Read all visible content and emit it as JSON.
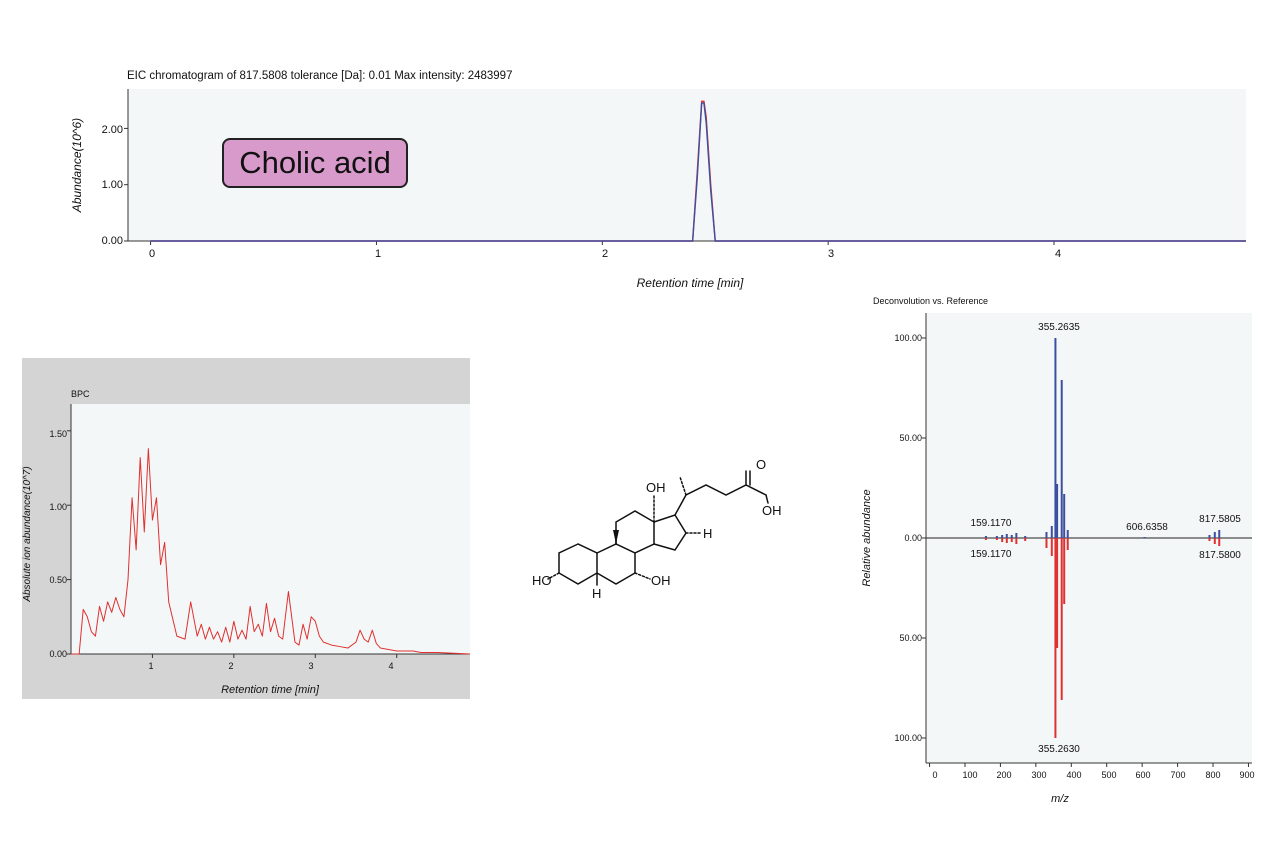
{
  "eic": {
    "title": "EIC chromatogram of 817.5808 tolerance [Da]: 0.01 Max intensity: 2483997",
    "ylabel": "Abundance(10^6)",
    "xlabel": "Retention time [min]",
    "yticks": [
      "2.00",
      "1.00",
      "0.00"
    ],
    "xticks": [
      "0",
      "1",
      "2",
      "3",
      "4"
    ]
  },
  "compound": {
    "name": "Cholic acid"
  },
  "bpc": {
    "title": "BPC",
    "ylabel": "Absolute ion abundance(10^7)",
    "xlabel": "Retention time [min]",
    "yticks": [
      "1.50",
      "1.00",
      "0.50",
      "0.00"
    ],
    "xticks": [
      "1",
      "2",
      "3",
      "4"
    ]
  },
  "spectrum": {
    "title": "Deconvolution vs. Reference",
    "ylabel": "Relative abundance",
    "xlabel": "m/z",
    "yticks_top": [
      "100.00",
      "50.00",
      "0.00"
    ],
    "yticks_bottom": [
      "50.00",
      "100.00"
    ],
    "xticks": [
      "0",
      "100",
      "200",
      "300",
      "400",
      "500",
      "600",
      "700",
      "800",
      "900"
    ],
    "peak_labels": {
      "top_main": "355.2635",
      "top_159": "159.1170",
      "top_606": "606.6358",
      "top_817": "817.5805",
      "bottom_159": "159.1170",
      "bottom_817": "817.5800",
      "bottom_main": "355.2630"
    }
  },
  "structure": {
    "labels": {
      "oh_top": "OH",
      "h_17": "H",
      "o_carbonyl": "O",
      "oh_acid": "OH",
      "ho_3": "HO",
      "oh_7": "OH",
      "h_5": "H"
    }
  },
  "colors": {
    "blue": "#3c4fa0",
    "red": "#e03030",
    "plot_bg": "#f4f7f7",
    "gray_panel": "#d4d4d4"
  },
  "chart_data": [
    {
      "type": "line",
      "title": "EIC chromatogram of 817.5808 tolerance [Da]: 0.01 Max intensity: 2483997",
      "xlabel": "Retention time [min]",
      "ylabel": "Abundance(10^6)",
      "xlim": [
        -0.1,
        4.85
      ],
      "ylim": [
        0,
        2.7
      ],
      "series": [
        {
          "x": [
            0,
            2.4,
            2.42,
            2.44,
            2.45,
            2.46,
            2.48,
            2.5,
            4.85
          ],
          "values": [
            0,
            0,
            1.2,
            2.48,
            2.48,
            2.2,
            1.0,
            0,
            0
          ]
        },
        {
          "x": [
            0,
            2.4,
            2.42,
            2.44,
            2.45,
            2.46,
            2.48,
            2.5,
            4.85
          ],
          "values": [
            0,
            0,
            1.1,
            2.45,
            2.45,
            2.1,
            0.9,
            0,
            0
          ]
        }
      ]
    },
    {
      "type": "line",
      "title": "BPC",
      "xlabel": "Retention time [min]",
      "ylabel": "Absolute ion abundance(10^7)",
      "xlim": [
        0,
        4.9
      ],
      "ylim": [
        0,
        1.68
      ],
      "series": [
        {
          "x": [
            0,
            0.1,
            0.15,
            0.2,
            0.25,
            0.3,
            0.35,
            0.4,
            0.45,
            0.5,
            0.55,
            0.6,
            0.65,
            0.7,
            0.75,
            0.8,
            0.85,
            0.9,
            0.95,
            1.0,
            1.05,
            1.1,
            1.15,
            1.2,
            1.3,
            1.4,
            1.47,
            1.55,
            1.6,
            1.65,
            1.7,
            1.75,
            1.8,
            1.85,
            1.9,
            1.95,
            2.0,
            2.05,
            2.1,
            2.15,
            2.2,
            2.25,
            2.3,
            2.35,
            2.4,
            2.45,
            2.5,
            2.55,
            2.6,
            2.67,
            2.75,
            2.8,
            2.85,
            2.9,
            2.95,
            3.0,
            3.05,
            3.1,
            3.2,
            3.3,
            3.4,
            3.5,
            3.55,
            3.6,
            3.65,
            3.7,
            3.75,
            3.8,
            3.9,
            4.0,
            4.1,
            4.2,
            4.3,
            4.5,
            4.9
          ],
          "values": [
            0,
            0,
            0.3,
            0.25,
            0.15,
            0.12,
            0.32,
            0.22,
            0.35,
            0.28,
            0.38,
            0.3,
            0.25,
            0.5,
            1.05,
            0.7,
            1.32,
            0.82,
            1.38,
            0.9,
            1.05,
            0.6,
            0.75,
            0.35,
            0.12,
            0.1,
            0.35,
            0.12,
            0.2,
            0.1,
            0.18,
            0.1,
            0.15,
            0.08,
            0.18,
            0.08,
            0.22,
            0.1,
            0.16,
            0.1,
            0.32,
            0.15,
            0.2,
            0.12,
            0.34,
            0.15,
            0.24,
            0.12,
            0.1,
            0.42,
            0.08,
            0.06,
            0.2,
            0.1,
            0.25,
            0.22,
            0.12,
            0.08,
            0.06,
            0.05,
            0.04,
            0.08,
            0.16,
            0.1,
            0.08,
            0.16,
            0.07,
            0.04,
            0.03,
            0.02,
            0.02,
            0.02,
            0.01,
            0.01,
            0
          ]
        }
      ]
    },
    {
      "type": "bar",
      "title": "Deconvolution vs. Reference",
      "xlabel": "m/z",
      "ylabel": "Relative abundance",
      "xlim": [
        -10,
        910
      ],
      "ylim": [
        -100,
        100
      ],
      "series": [
        {
          "name": "Deconvolution",
          "x": [
            159.117,
            190,
            205,
            218,
            232,
            245,
            270,
            330,
            345,
            355.2635,
            360,
            373,
            380,
            390,
            606.6358,
            790,
            805,
            817.5805
          ],
          "values": [
            1,
            1,
            1.5,
            2,
            1.5,
            2.5,
            1,
            3,
            6,
            100,
            27,
            79,
            22,
            4,
            0.5,
            1.5,
            3,
            4
          ]
        },
        {
          "name": "Reference",
          "x": [
            159.117,
            190,
            205,
            218,
            232,
            245,
            270,
            330,
            345,
            355.263,
            360,
            373,
            380,
            390,
            790,
            805,
            817.58
          ],
          "values": [
            -1,
            -1,
            -2,
            -2.5,
            -2,
            -3,
            -1.5,
            -5,
            -9,
            -100,
            -55,
            -81,
            -33,
            -6,
            -1.5,
            -3,
            -4
          ]
        }
      ]
    }
  ]
}
